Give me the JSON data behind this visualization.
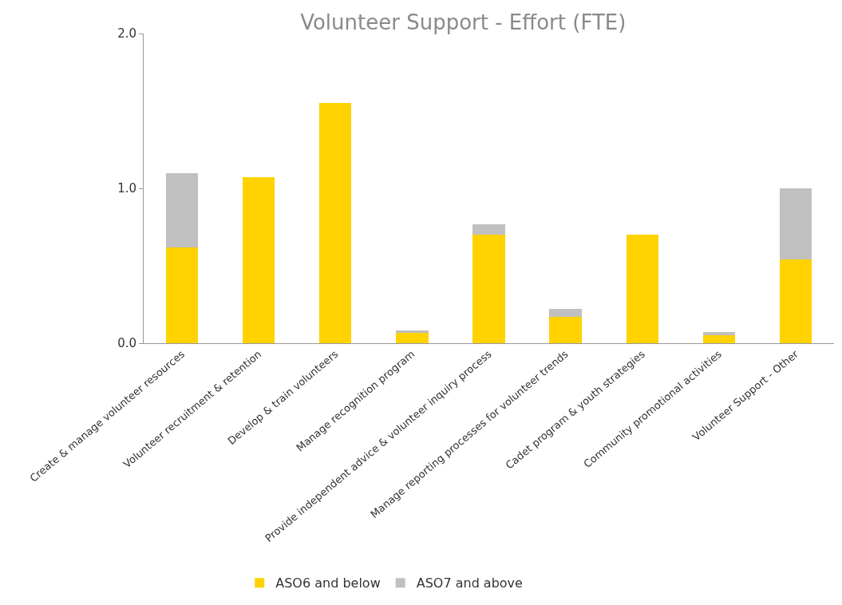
{
  "chart_data": {
    "type": "bar",
    "title": "Volunteer Support - Effort (FTE)",
    "stacked": true,
    "categories": [
      "Create & manage volunteer resources",
      "Volunteer recruitment & retention",
      "Develop & train volunteers",
      "Manage recognition program",
      "Provide independent advice & volunteer inquiry process",
      "Manage reporting processes for volunteer trends",
      "Cadet program & youth strategies",
      "Community promotional activities",
      "Volunteer Support - Other"
    ],
    "series": [
      {
        "name": "ASO6 and below",
        "color": "#ffd200",
        "values": [
          0.62,
          1.07,
          1.55,
          0.07,
          0.7,
          0.17,
          0.7,
          0.05,
          0.54
        ]
      },
      {
        "name": "ASO7 and above",
        "color": "#c0c0c0",
        "values": [
          0.48,
          0,
          0,
          0.01,
          0.07,
          0.05,
          0,
          0.02,
          0.46
        ]
      }
    ],
    "ylim": [
      0,
      2
    ],
    "yticks": [
      {
        "value": 0,
        "label": "0.0"
      },
      {
        "value": 1,
        "label": "1.0"
      },
      {
        "value": 2,
        "label": "2.0"
      }
    ],
    "grid": false,
    "legend": "bottom"
  }
}
